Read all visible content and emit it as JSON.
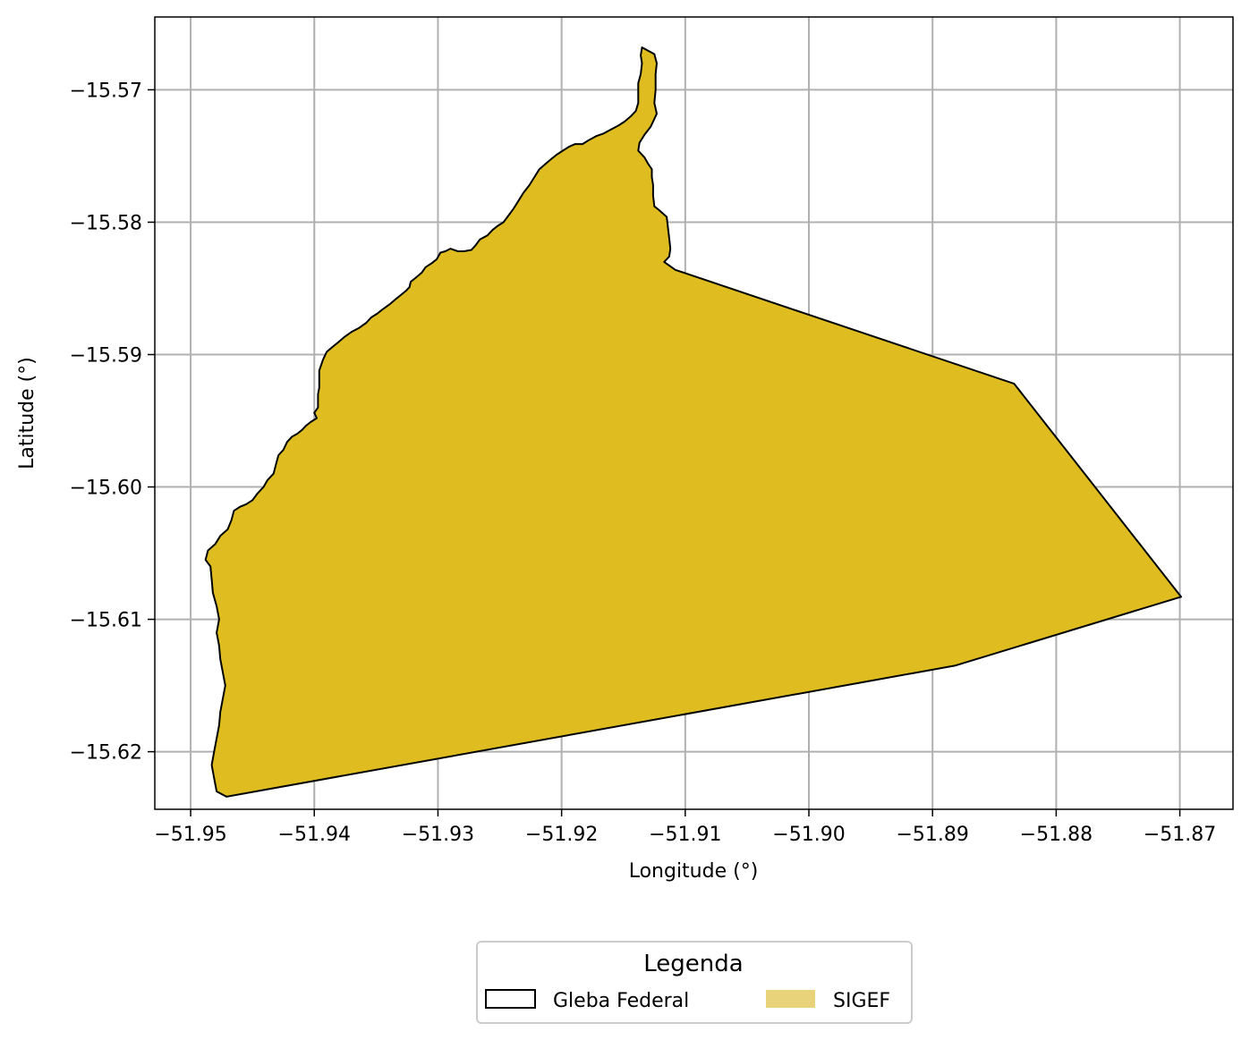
{
  "map": {
    "x_axis_label": "Longitude (°)",
    "y_axis_label": "Latitude (°)",
    "xlim": [
      -51.9529,
      -51.8657
    ],
    "ylim": [
      -15.62435,
      -15.5645
    ],
    "x_ticks": [
      -51.95,
      -51.94,
      -51.93,
      -51.92,
      -51.91,
      -51.9,
      -51.89,
      -51.88,
      -51.87
    ],
    "x_tick_labels": [
      "−51.95",
      "−51.94",
      "−51.93",
      "−51.92",
      "−51.91",
      "−51.90",
      "−51.89",
      "−51.88",
      "−51.87"
    ],
    "y_ticks": [
      -15.57,
      -15.58,
      -15.59,
      -15.6,
      -15.61,
      -15.62
    ],
    "y_tick_labels": [
      "−15.57",
      "−15.58",
      "−15.59",
      "−15.60",
      "−15.61",
      "−15.62"
    ],
    "grid": true,
    "colors": {
      "polygon_fill": "#dfbd20",
      "polygon_edge": "#000000",
      "legend_sigef": "#e9d37a",
      "grid": "#b0b0b0"
    },
    "layers": [
      {
        "name": "Gleba Federal",
        "style": "outline",
        "coordinates": [
          [
            -51.9135,
            -15.5668
          ],
          [
            -51.9125,
            -15.5673
          ],
          [
            -51.9123,
            -15.568
          ],
          [
            -51.9124,
            -15.5688
          ],
          [
            -51.9124,
            -15.57
          ],
          [
            -51.9125,
            -15.571
          ],
          [
            -51.9123,
            -15.5718
          ],
          [
            -51.9125,
            -15.5722
          ],
          [
            -51.9128,
            -15.5728
          ],
          [
            -51.9133,
            -15.5734
          ],
          [
            -51.9137,
            -15.574
          ],
          [
            -51.9138,
            -15.5746
          ],
          [
            -51.9133,
            -15.5751
          ],
          [
            -51.913,
            -15.5756
          ],
          [
            -51.9127,
            -15.576
          ],
          [
            -51.9127,
            -15.5766
          ],
          [
            -51.9126,
            -15.5772
          ],
          [
            -51.9126,
            -15.578
          ],
          [
            -51.9125,
            -15.5788
          ],
          [
            -51.9121,
            -15.5791
          ],
          [
            -51.9115,
            -15.5796
          ],
          [
            -51.9114,
            -15.5804
          ],
          [
            -51.9113,
            -15.5812
          ],
          [
            -51.9112,
            -15.582
          ],
          [
            -51.9113,
            -15.5826
          ],
          [
            -51.9117,
            -15.583
          ],
          [
            -51.9108,
            -15.5836
          ],
          [
            -51.8834,
            -15.5922
          ],
          [
            -51.8699,
            -15.6083
          ],
          [
            -51.8882,
            -15.6135
          ],
          [
            -51.9471,
            -15.6234
          ],
          [
            -51.9479,
            -15.623
          ],
          [
            -51.9481,
            -15.622
          ],
          [
            -51.9483,
            -15.621
          ],
          [
            -51.9481,
            -15.62
          ],
          [
            -51.9479,
            -15.619
          ],
          [
            -51.9477,
            -15.618
          ],
          [
            -51.9476,
            -15.617
          ],
          [
            -51.9474,
            -15.616
          ],
          [
            -51.9472,
            -15.615
          ],
          [
            -51.9474,
            -15.614
          ],
          [
            -51.9476,
            -15.613
          ],
          [
            -51.9477,
            -15.612
          ],
          [
            -51.9479,
            -15.611
          ],
          [
            -51.9477,
            -15.61
          ],
          [
            -51.9479,
            -15.609
          ],
          [
            -51.9482,
            -15.608
          ],
          [
            -51.9483,
            -15.607
          ],
          [
            -51.9484,
            -15.606
          ],
          [
            -51.9488,
            -15.6055
          ],
          [
            -51.9486,
            -15.6048
          ],
          [
            -51.948,
            -15.6043
          ],
          [
            -51.9476,
            -15.6037
          ],
          [
            -51.947,
            -15.6032
          ],
          [
            -51.9467,
            -15.6025
          ],
          [
            -51.9465,
            -15.6018
          ],
          [
            -51.946,
            -15.6015
          ],
          [
            -51.9455,
            -15.6013
          ],
          [
            -51.945,
            -15.601
          ],
          [
            -51.9446,
            -15.6005
          ],
          [
            -51.9441,
            -15.6
          ],
          [
            -51.9438,
            -15.5995
          ],
          [
            -51.9433,
            -15.599
          ],
          [
            -51.9431,
            -15.5983
          ],
          [
            -51.9429,
            -15.5976
          ],
          [
            -51.9425,
            -15.5972
          ],
          [
            -51.9422,
            -15.5966
          ],
          [
            -51.9418,
            -15.5962
          ],
          [
            -51.9414,
            -15.596
          ],
          [
            -51.941,
            -15.5957
          ],
          [
            -51.9407,
            -15.5954
          ],
          [
            -51.9403,
            -15.5951
          ],
          [
            -51.9398,
            -15.5948
          ],
          [
            -51.94,
            -15.5944
          ],
          [
            -51.9397,
            -15.594
          ],
          [
            -51.9397,
            -15.5935
          ],
          [
            -51.9397,
            -15.593
          ],
          [
            -51.9396,
            -15.5925
          ],
          [
            -51.9396,
            -15.592
          ],
          [
            -51.9396,
            -15.5912
          ],
          [
            -51.9393,
            -15.5904
          ],
          [
            -51.939,
            -15.5898
          ],
          [
            -51.9385,
            -15.5894
          ],
          [
            -51.9381,
            -15.5891
          ],
          [
            -51.9376,
            -15.5887
          ],
          [
            -51.937,
            -15.5883
          ],
          [
            -51.9364,
            -15.588
          ],
          [
            -51.9358,
            -15.5876
          ],
          [
            -51.9354,
            -15.5872
          ],
          [
            -51.9349,
            -15.5869
          ],
          [
            -51.9345,
            -15.5866
          ],
          [
            -51.9339,
            -15.5862
          ],
          [
            -51.9334,
            -15.5858
          ],
          [
            -51.933,
            -15.5855
          ],
          [
            -51.9326,
            -15.5852
          ],
          [
            -51.9323,
            -15.5849
          ],
          [
            -51.9322,
            -15.5845
          ],
          [
            -51.9318,
            -15.5842
          ],
          [
            -51.9313,
            -15.5838
          ],
          [
            -51.931,
            -15.5834
          ],
          [
            -51.9305,
            -15.5831
          ],
          [
            -51.9301,
            -15.5828
          ],
          [
            -51.9298,
            -15.5823
          ],
          [
            -51.9294,
            -15.5822
          ],
          [
            -51.929,
            -15.582
          ],
          [
            -51.9284,
            -15.5822
          ],
          [
            -51.9279,
            -15.5822
          ],
          [
            -51.9273,
            -15.5821
          ],
          [
            -51.927,
            -15.5818
          ],
          [
            -51.9266,
            -15.5813
          ],
          [
            -51.926,
            -15.581
          ],
          [
            -51.9256,
            -15.5806
          ],
          [
            -51.9252,
            -15.5803
          ],
          [
            -51.9247,
            -15.58
          ],
          [
            -51.9243,
            -15.5795
          ],
          [
            -51.9239,
            -15.579
          ],
          [
            -51.9235,
            -15.5784
          ],
          [
            -51.9231,
            -15.5778
          ],
          [
            -51.9226,
            -15.5772
          ],
          [
            -51.9222,
            -15.5766
          ],
          [
            -51.9218,
            -15.576
          ],
          [
            -51.9213,
            -15.5756
          ],
          [
            -51.9208,
            -15.5752
          ],
          [
            -51.9204,
            -15.5749
          ],
          [
            -51.9199,
            -15.5746
          ],
          [
            -51.9194,
            -15.5743
          ],
          [
            -51.9189,
            -15.5741
          ],
          [
            -51.9183,
            -15.5741
          ],
          [
            -51.9178,
            -15.5738
          ],
          [
            -51.9172,
            -15.5735
          ],
          [
            -51.9166,
            -15.5733
          ],
          [
            -51.916,
            -15.573
          ],
          [
            -51.9154,
            -15.5727
          ],
          [
            -51.9149,
            -15.5724
          ],
          [
            -51.9144,
            -15.572
          ],
          [
            -51.914,
            -15.5716
          ],
          [
            -51.9138,
            -15.571
          ],
          [
            -51.9138,
            -15.5703
          ],
          [
            -51.9138,
            -15.5695
          ],
          [
            -51.9136,
            -15.5688
          ],
          [
            -51.9135,
            -15.568
          ],
          [
            -51.9136,
            -15.5674
          ],
          [
            -51.9135,
            -15.5668
          ]
        ]
      },
      {
        "name": "SIGEF",
        "style": "filled",
        "note": ""
      }
    ],
    "legend": {
      "title": "Legenda",
      "placement": "bottom-center",
      "items": [
        {
          "label": "Gleba Federal",
          "style": "outline"
        },
        {
          "label": "SIGEF",
          "style": "filled"
        }
      ]
    }
  }
}
